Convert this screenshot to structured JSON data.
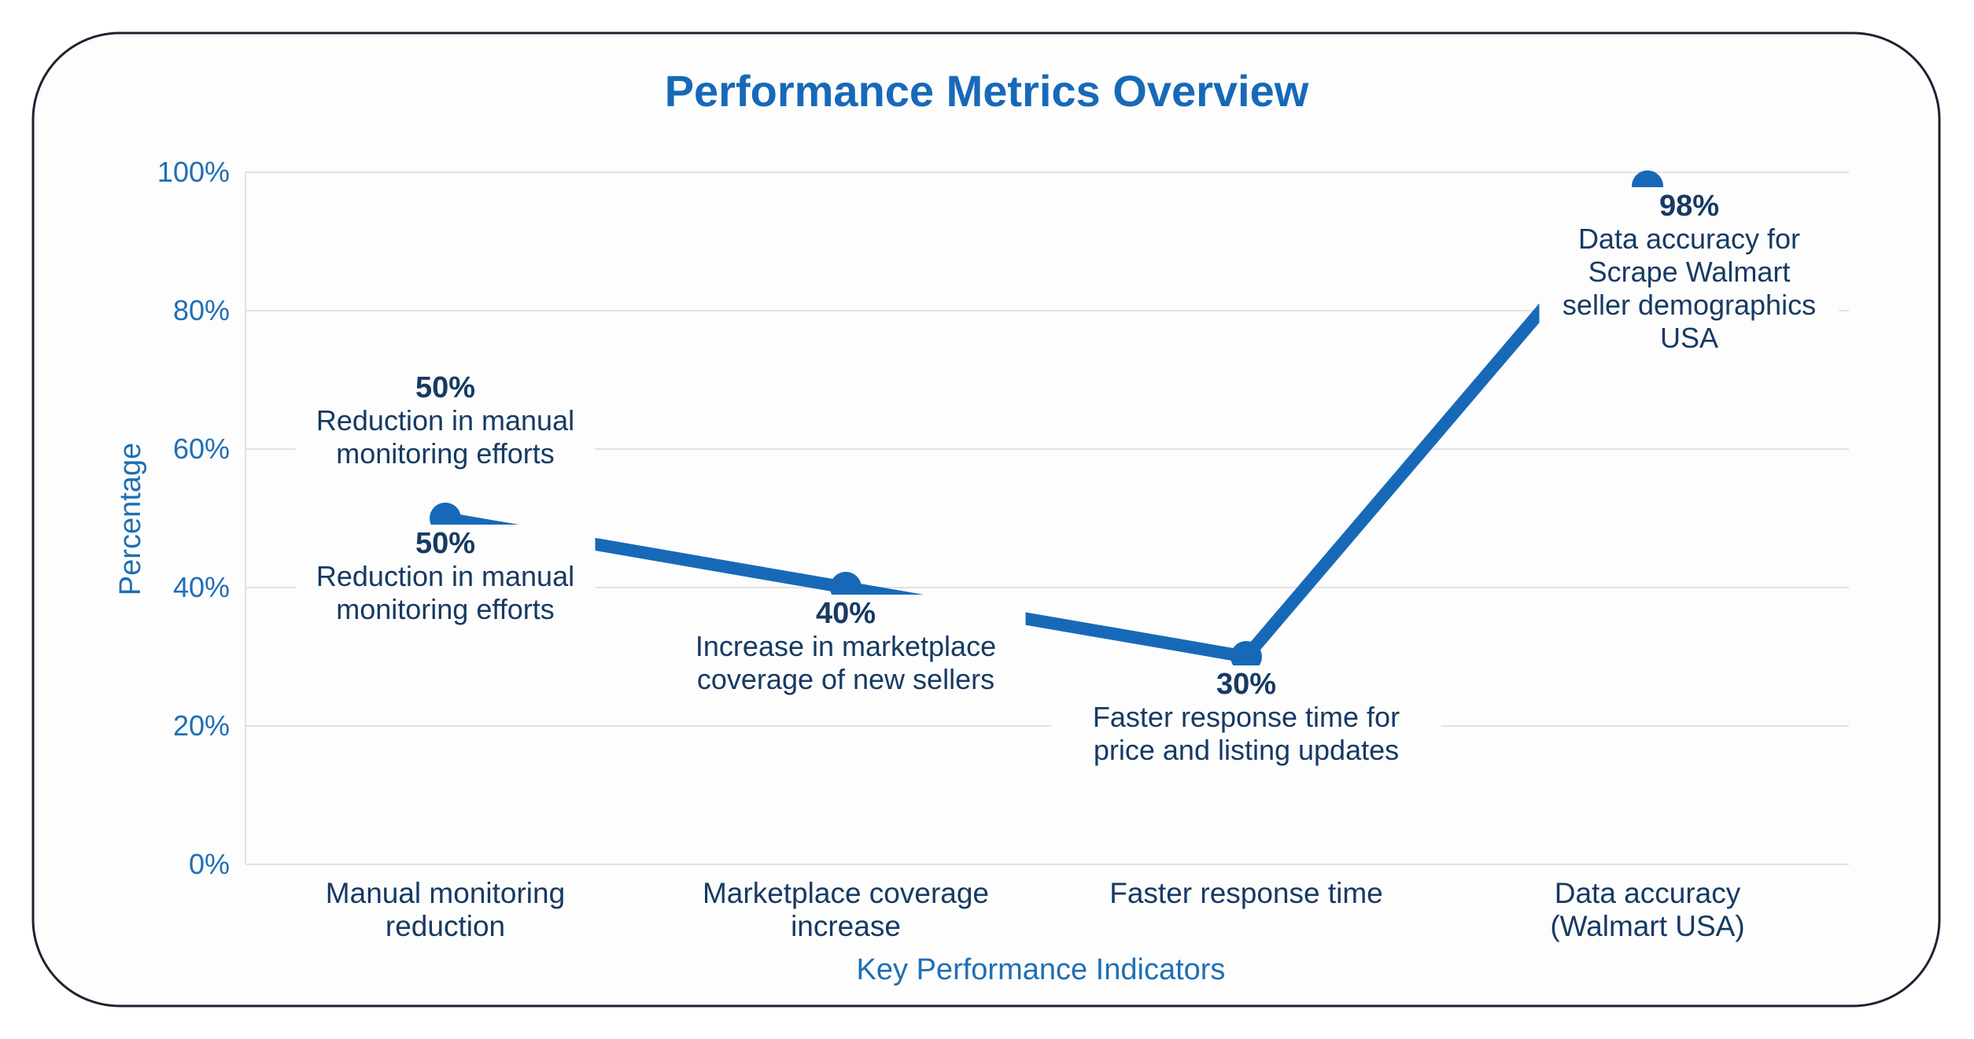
{
  "chart_data": {
    "type": "line",
    "title": "Performance Metrics Overview",
    "xlabel": "Key Performance Indicators",
    "ylabel": "Percentage",
    "ylim": [
      0,
      100
    ],
    "yticks": [
      "0%",
      "20%",
      "40%",
      "60%",
      "80%",
      "100%"
    ],
    "grid": true,
    "categories": [
      [
        "Manual monitoring",
        "reduction"
      ],
      [
        "Marketplace coverage",
        "increase"
      ],
      [
        "Faster response time"
      ],
      [
        "Data accuracy",
        "(Walmart USA)"
      ]
    ],
    "values": [
      50,
      40,
      30,
      98
    ],
    "annotations": [
      {
        "value": "50%",
        "lines": [
          "Reduction in manual",
          "monitoring efforts"
        ],
        "position": "above"
      },
      {
        "value": "50%",
        "lines": [
          "Reduction in manual",
          "monitoring efforts"
        ],
        "position": "below"
      },
      {
        "value": "40%",
        "lines": [
          "Increase in marketplace",
          "coverage of new sellers"
        ],
        "position": "below"
      },
      {
        "value": "30%",
        "lines": [
          "Faster response time for",
          "price and listing updates"
        ],
        "position": "below"
      },
      {
        "value": "98%",
        "lines": [
          "Data accuracy for",
          "Scrape Walmart",
          "seller demographics",
          "USA"
        ],
        "position": "below-right"
      }
    ],
    "colors": {
      "line": "#1769b8",
      "title": "#1769b8",
      "text": "#163a63",
      "grid": "#e2e2e2"
    }
  }
}
